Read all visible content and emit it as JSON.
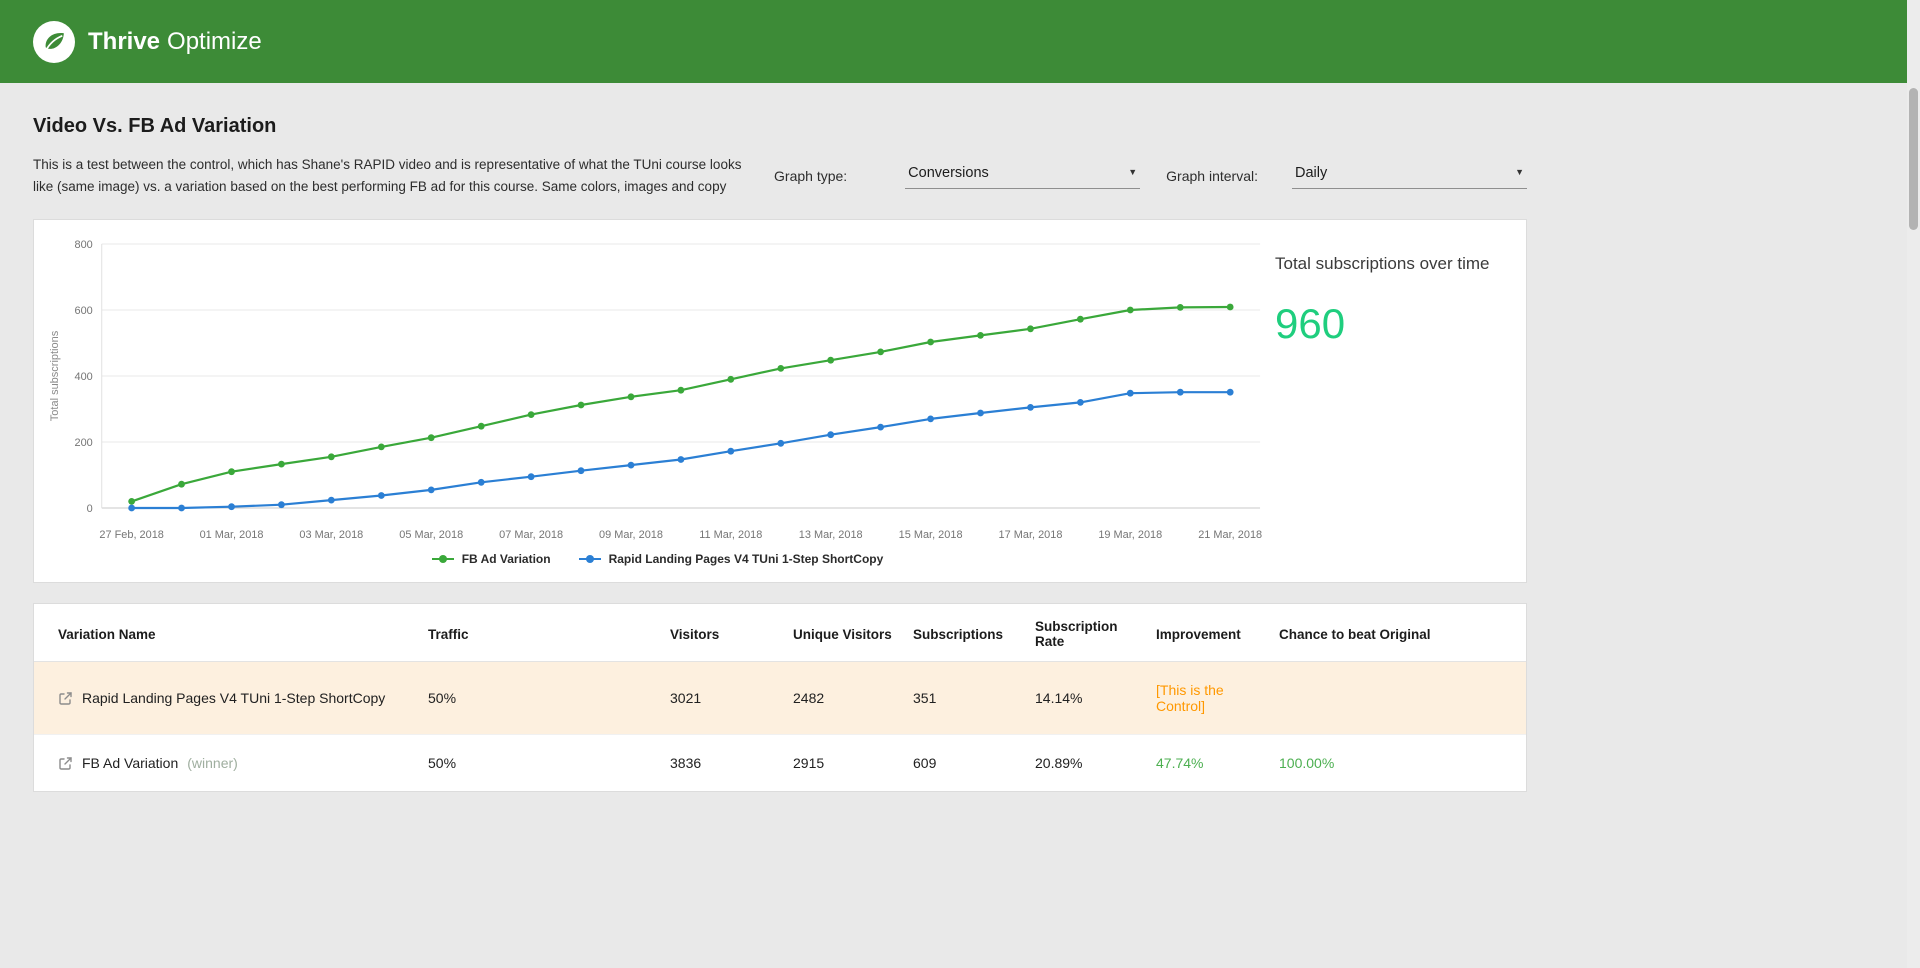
{
  "header": {
    "brand_bold": "Thrive",
    "brand_light": "Optimize"
  },
  "page": {
    "title": "Video Vs. FB Ad Variation",
    "description_line1": "This is a test between the control, which has Shane's RAPID video and is representative of what the TUni course looks",
    "description_line2": "like (same image) vs. a variation based on the best performing FB ad for this course. Same colors, images and copy",
    "controls": {
      "graph_type_label": "Graph type:",
      "graph_type_value": "Conversions",
      "graph_interval_label": "Graph interval:",
      "graph_interval_value": "Daily",
      "caret_glyph": "▼"
    }
  },
  "chart_summary": {
    "label": "Total subscriptions over time",
    "value": "960",
    "value_color": "#1fce7e"
  },
  "chart_data": {
    "type": "line",
    "title": "",
    "xlabel": "",
    "ylabel": "Total subscriptions",
    "ylim": [
      0,
      800
    ],
    "yticks": [
      0,
      200,
      400,
      600,
      800
    ],
    "grid": "horizontal",
    "legend_position": "bottom",
    "x_labels": [
      "27 Feb, 2018",
      "28 Feb, 2018",
      "01 Mar, 2018",
      "02 Mar, 2018",
      "03 Mar, 2018",
      "04 Mar, 2018",
      "05 Mar, 2018",
      "06 Mar, 2018",
      "07 Mar, 2018",
      "08 Mar, 2018",
      "09 Mar, 2018",
      "10 Mar, 2018",
      "11 Mar, 2018",
      "12 Mar, 2018",
      "13 Mar, 2018",
      "14 Mar, 2018",
      "15 Mar, 2018",
      "16 Mar, 2018",
      "17 Mar, 2018",
      "18 Mar, 2018",
      "19 Mar, 2018",
      "20 Mar, 2018",
      "21 Mar, 2018"
    ],
    "x_ticks_shown_every": 2,
    "series": [
      {
        "name": "FB Ad Variation",
        "color": "#3aa83a",
        "values": [
          20,
          72,
          110,
          133,
          155,
          185,
          213,
          248,
          283,
          312,
          337,
          357,
          390,
          423,
          448,
          473,
          503,
          523,
          543,
          572,
          600,
          608,
          609
        ]
      },
      {
        "name": "Rapid Landing Pages V4 TUni 1-Step ShortCopy",
        "color": "#2b7fd4",
        "values": [
          0,
          0,
          4,
          10,
          24,
          38,
          55,
          78,
          95,
          113,
          130,
          147,
          172,
          196,
          222,
          245,
          270,
          288,
          305,
          320,
          348,
          351,
          351
        ]
      }
    ]
  },
  "table": {
    "headers": [
      "Variation Name",
      "Traffic",
      "Visitors",
      "Unique Visitors",
      "Subscriptions",
      "Subscription Rate",
      "Improvement",
      "Chance to beat Original"
    ],
    "rows": [
      {
        "name": "Rapid Landing Pages V4 TUni 1-Step ShortCopy",
        "suffix": "",
        "traffic": "50%",
        "visitors": "3021",
        "unique_visitors": "2482",
        "subscriptions": "351",
        "subscription_rate": "14.14%",
        "improvement": "[This is the Control]",
        "improvement_color": "#ff9800",
        "chance": "",
        "chance_color": "",
        "highlight": true
      },
      {
        "name": "FB Ad Variation",
        "suffix": "(winner)",
        "traffic": "50%",
        "visitors": "3836",
        "unique_visitors": "2915",
        "subscriptions": "609",
        "subscription_rate": "20.89%",
        "improvement": "47.74%",
        "improvement_color": "#4caf50",
        "chance": "100.00%",
        "chance_color": "#4caf50",
        "highlight": false
      }
    ]
  },
  "icons": {
    "logo": "thrive-leaf-icon",
    "external_link": "external-link-icon",
    "dropdown_caret": "caret-down-icon"
  }
}
